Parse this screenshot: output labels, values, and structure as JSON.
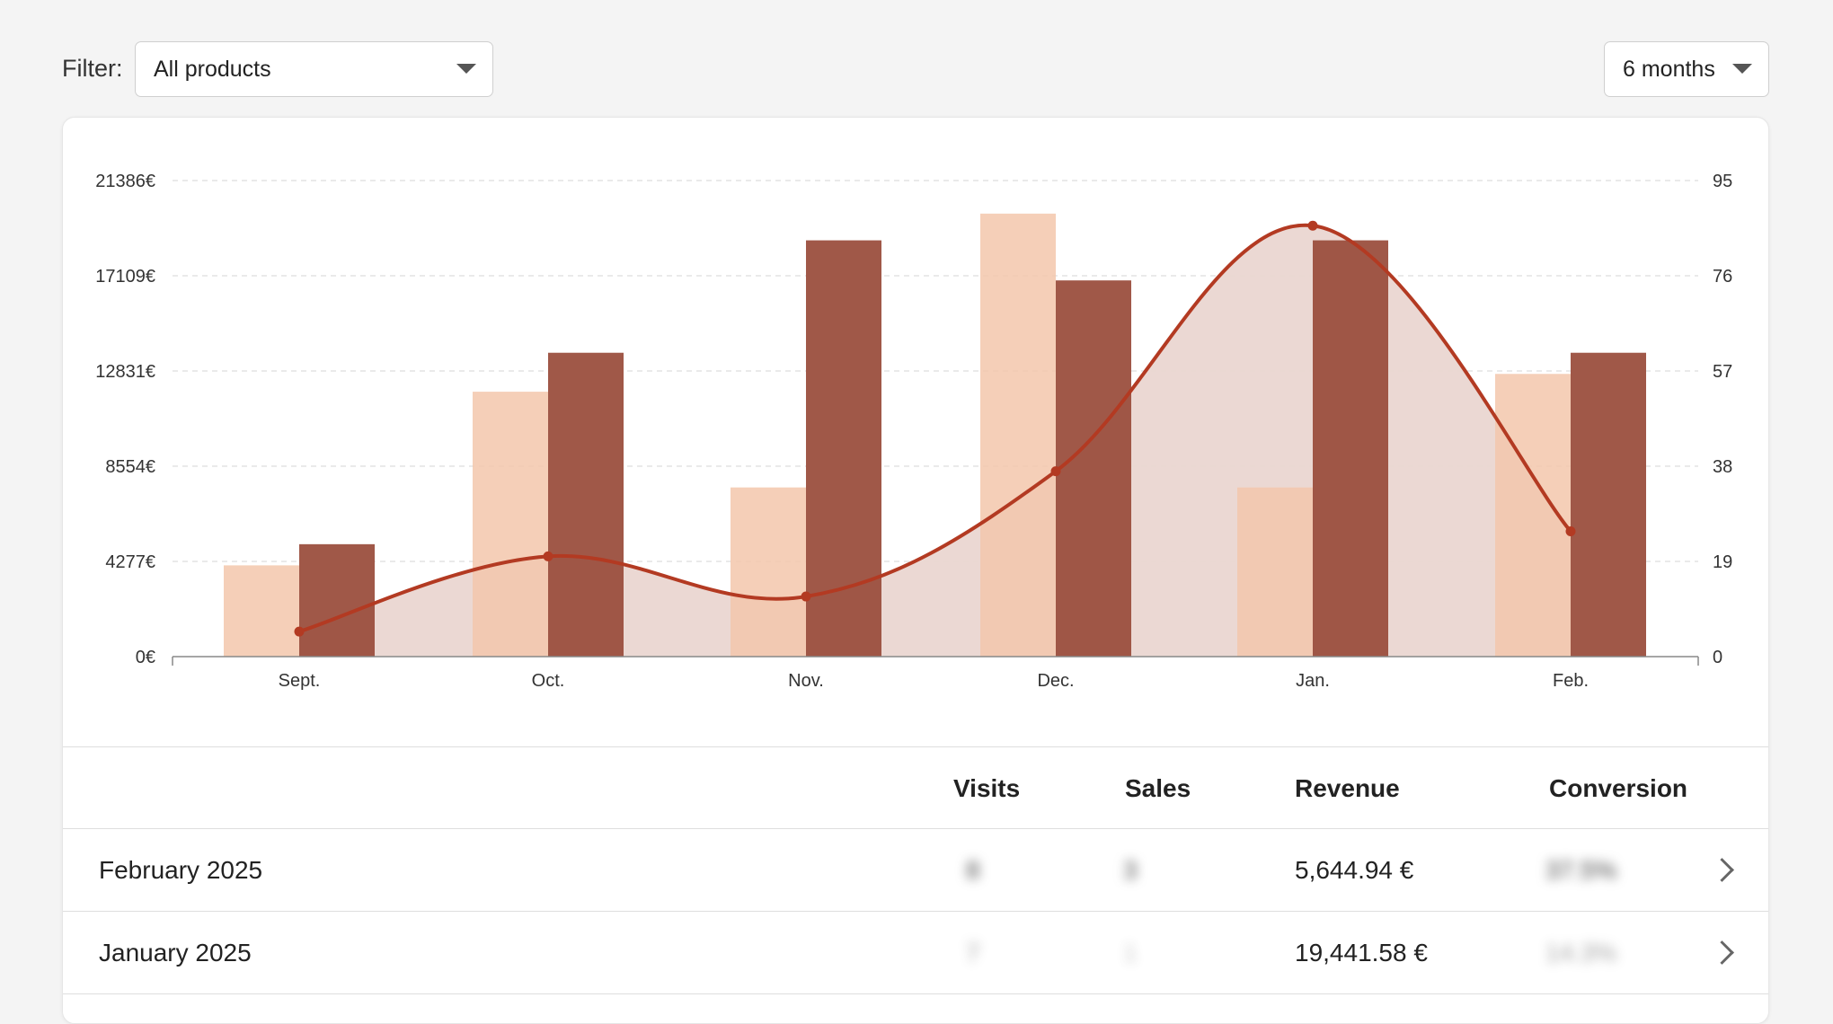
{
  "filter": {
    "label": "Filter:",
    "product_value": "All products",
    "period_value": "6 months"
  },
  "colors": {
    "visits_bar": "#f3c7ab",
    "sales_bar": "#9b4f3e",
    "conversion_line": "#b33a22",
    "conversion_area": "#ead6d1",
    "grid": "#e4e4e4"
  },
  "chart_data": {
    "type": "bar",
    "categories": [
      "Sept.",
      "Oct.",
      "Nov.",
      "Dec.",
      "Jan.",
      "Feb."
    ],
    "left_axis": {
      "ticks": [
        0,
        4277,
        8554,
        12831,
        17109,
        21386
      ],
      "tick_labels": [
        "0€",
        "4277€",
        "8554€",
        "12831€",
        "17109€",
        "21386€"
      ],
      "ylim": [
        0,
        21386
      ]
    },
    "right_axis": {
      "ticks": [
        0,
        19,
        38,
        57,
        76,
        95
      ],
      "tick_labels": [
        "0",
        "19",
        "38",
        "57",
        "76",
        "95"
      ],
      "ylim": [
        0,
        95
      ]
    },
    "series": [
      {
        "name": "Visits",
        "type": "bar",
        "axis": "left",
        "values": [
          4100,
          11900,
          7600,
          19900,
          7600,
          12700
        ]
      },
      {
        "name": "Sales",
        "type": "bar",
        "axis": "left",
        "values": [
          5050,
          13650,
          18700,
          16900,
          18700,
          13650
        ]
      },
      {
        "name": "Conversion",
        "type": "line-area",
        "axis": "right",
        "values": [
          5,
          20,
          12,
          37,
          86,
          25
        ]
      }
    ],
    "grid": true
  },
  "table": {
    "headers": [
      "Visits",
      "Sales",
      "Revenue",
      "Conversion"
    ],
    "rows": [
      {
        "month": "February 2025",
        "visits": "8",
        "sales": "3",
        "revenue": "5,644.94 €",
        "conversion": "37.5%"
      },
      {
        "month": "January 2025",
        "visits": "7",
        "sales": "1",
        "revenue": "19,441.58 €",
        "conversion": "14.3%"
      }
    ]
  }
}
